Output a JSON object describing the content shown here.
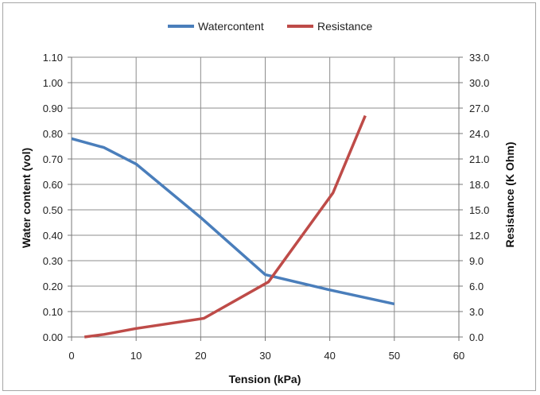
{
  "chart_data": {
    "type": "line",
    "xlabel": "Tension (kPa)",
    "ylabel": "Water content (vol)",
    "y2label": "Resistance (K Ohm)",
    "xlim": [
      0,
      60
    ],
    "ylim": [
      0,
      1.1
    ],
    "y2lim": [
      0,
      33
    ],
    "x_ticks": [
      "0",
      "10",
      "20",
      "30",
      "40",
      "50",
      "60"
    ],
    "y_ticks": [
      "0.00",
      "0.10",
      "0.20",
      "0.30",
      "0.40",
      "0.50",
      "0.60",
      "0.70",
      "0.80",
      "0.90",
      "1.00",
      "1.10"
    ],
    "y2_ticks": [
      "0.0",
      "3.0",
      "6.0",
      "9.0",
      "12.0",
      "15.0",
      "18.0",
      "21.0",
      "24.0",
      "27.0",
      "30.0",
      "33.0"
    ],
    "grid": true,
    "legend_position": "top",
    "series": [
      {
        "name": "Watercontent",
        "axis": "left",
        "color": "#4a7ebb",
        "x": [
          0,
          5,
          10,
          20,
          30,
          40,
          50
        ],
        "y": [
          0.78,
          0.745,
          0.68,
          0.47,
          0.245,
          0.185,
          0.13
        ]
      },
      {
        "name": "Resistance",
        "axis": "right",
        "color": "#be4b48",
        "x": [
          2,
          5,
          10,
          20.5,
          30.5,
          40.5,
          45.5
        ],
        "y": [
          0,
          0.3,
          1.0,
          2.2,
          6.5,
          17.0,
          26.1
        ]
      }
    ]
  }
}
